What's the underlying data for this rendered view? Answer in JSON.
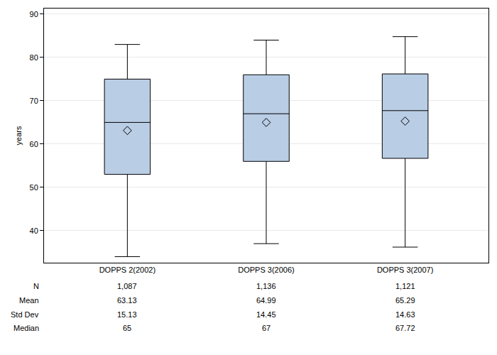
{
  "chart_data": {
    "type": "box",
    "categories": [
      "DOPPS 2(2002)",
      "DOPPS 3(2006)",
      "DOPPS 3(2007)"
    ],
    "ylabel": "years",
    "ylim": [
      32.6,
      91.3
    ],
    "yticks": [
      40,
      50,
      60,
      70,
      80,
      90
    ],
    "grid": true,
    "color": "#b9cde5",
    "marker": "diamond-open",
    "lowerfence": [
      34,
      37,
      36.2
    ],
    "q1": [
      53,
      56,
      56.7
    ],
    "q3": [
      75,
      76,
      76.2
    ],
    "upperfence": [
      83,
      84,
      84.8
    ],
    "stats": {
      "n": {
        "label": "N",
        "values": [
          1087,
          1136,
          1121
        ],
        "value_labels": [
          "1,087",
          "1,136",
          "1,121"
        ]
      },
      "mean": {
        "label": "Mean",
        "values": [
          63.13,
          64.99,
          65.29
        ]
      },
      "sd": {
        "label": "Std Dev",
        "values": [
          15.13,
          14.45,
          14.63
        ]
      },
      "median": {
        "label": "Median",
        "values": [
          65,
          67,
          67.72
        ]
      }
    }
  }
}
